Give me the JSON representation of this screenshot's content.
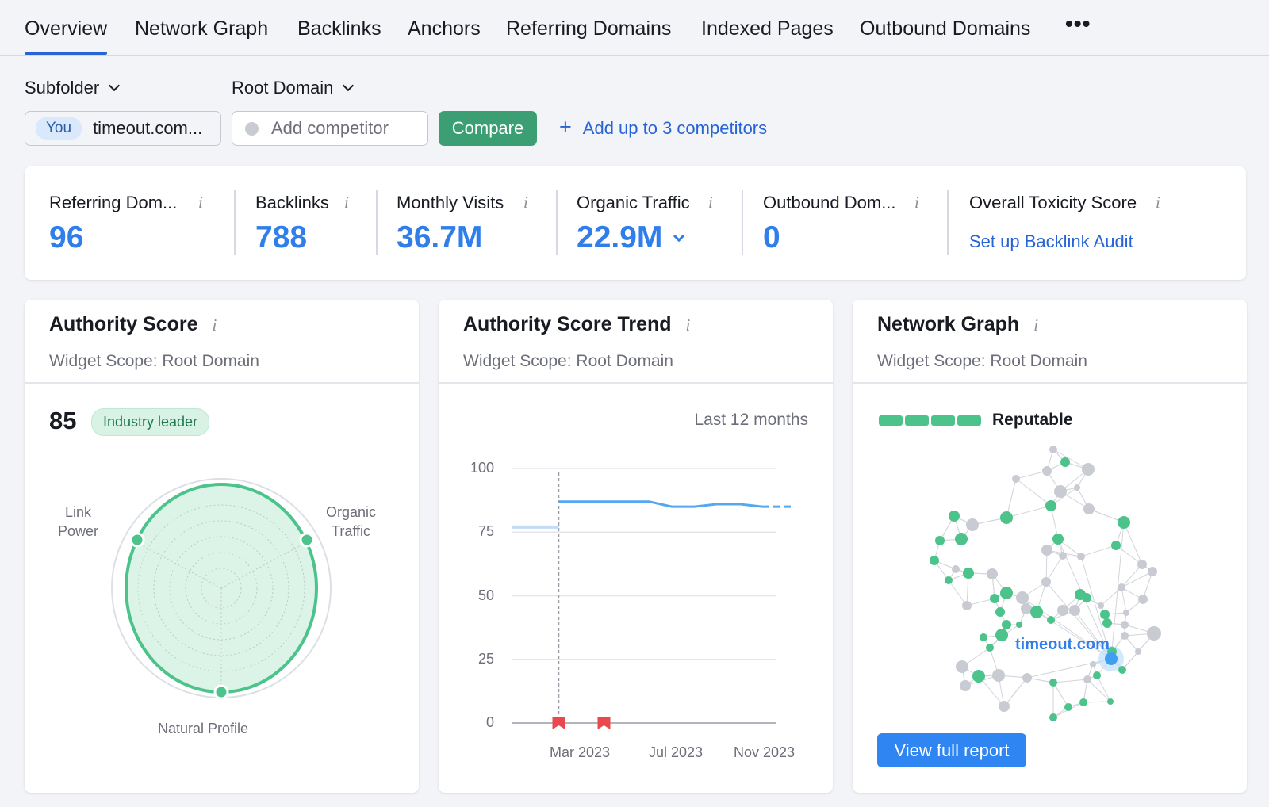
{
  "tabs": [
    {
      "label": "Overview",
      "active": true
    },
    {
      "label": "Network Graph"
    },
    {
      "label": "Backlinks"
    },
    {
      "label": "Anchors"
    },
    {
      "label": "Referring Domains"
    },
    {
      "label": "Indexed Pages"
    },
    {
      "label": "Outbound Domains"
    }
  ],
  "tabs_more": "•••",
  "filters": {
    "scope_dropdown": "Subfolder",
    "competitor_scope_dropdown": "Root Domain",
    "you_tag": "You",
    "you_domain": "timeout.com...",
    "competitor_placeholder": "Add competitor",
    "compare_label": "Compare",
    "add_competitors_label": "Add up to 3 competitors"
  },
  "metrics": [
    {
      "label": "Referring Dom...",
      "value": "96"
    },
    {
      "label": "Backlinks",
      "value": "788"
    },
    {
      "label": "Monthly Visits",
      "value": "36.7M"
    },
    {
      "label": "Organic Traffic",
      "value": "22.9M"
    },
    {
      "label": "Outbound Dom...",
      "value": "0"
    },
    {
      "label": "Overall Toxicity Score",
      "link": "Set up Backlink Audit"
    }
  ],
  "info_glyph": "i",
  "authority": {
    "title": "Authority Score",
    "scope": "Widget Scope: Root Domain",
    "score": "85",
    "badge": "Industry leader",
    "labels": {
      "link_power": "Link\nPower",
      "organic_traffic": "Organic\nTraffic",
      "natural_profile": "Natural Profile"
    }
  },
  "trend": {
    "title": "Authority Score Trend",
    "scope": "Widget Scope: Root Domain",
    "period": "Last 12 months"
  },
  "network": {
    "title": "Network Graph",
    "scope": "Widget Scope: Root Domain",
    "reputation": "Reputable",
    "reputation_level": 4,
    "domain_label": "timeout.com",
    "view_button": "View full report"
  },
  "colors": {
    "accent_blue": "#2f7ee9",
    "link_blue": "#2764d5",
    "green": "#3c9f73",
    "node_green": "#4cc38a",
    "node_grey": "#c9cbd2",
    "event_red": "#e9484d"
  },
  "chart_data": {
    "type": "line",
    "title": "Authority Score Trend",
    "xlabel": "",
    "ylabel": "",
    "ylim": [
      0,
      100
    ],
    "yticks": [
      0,
      25,
      50,
      75,
      100
    ],
    "xticks": [
      "Mar 2023",
      "Jul 2023",
      "Nov 2023"
    ],
    "grid": true,
    "series": [
      {
        "x": [
          "Jan 2023",
          "Feb 2023",
          "Mar 2023",
          "Apr 2023",
          "May 2023",
          "Jun 2023",
          "Jul 2023",
          "Aug 2023",
          "Sep 2023",
          "Oct 2023",
          "Nov 2023",
          "Dec 2023"
        ],
        "values": [
          77,
          87,
          87,
          87,
          87,
          87,
          85,
          85,
          86,
          86,
          85,
          85
        ]
      }
    ],
    "events": [
      "Feb 2023",
      "Apr 2023"
    ]
  }
}
